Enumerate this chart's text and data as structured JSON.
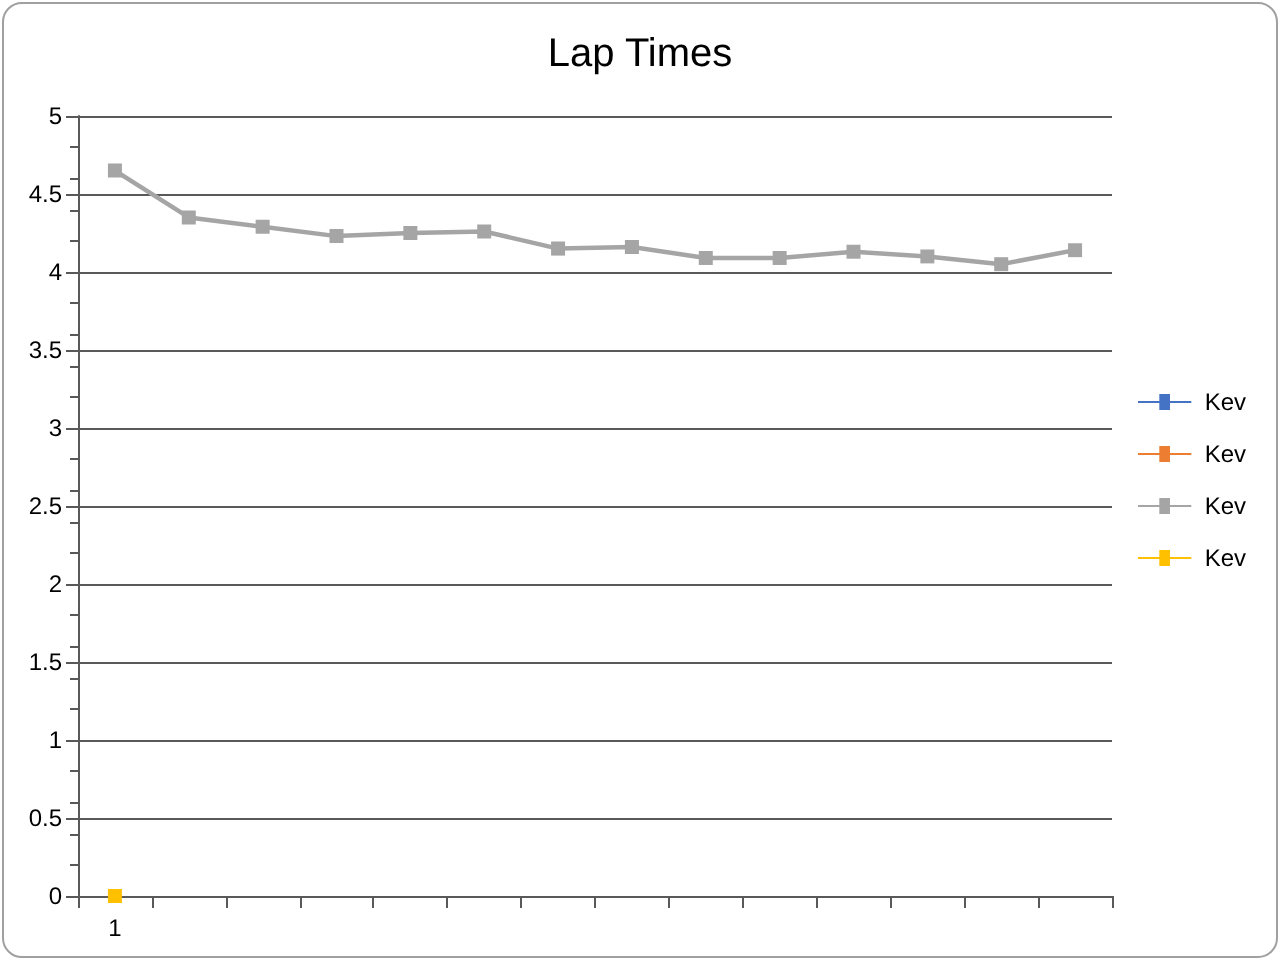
{
  "chart_data": {
    "type": "line",
    "title": "Lap Times",
    "categories": [
      "1",
      null,
      null,
      null,
      null,
      null,
      null,
      null,
      null,
      null,
      null,
      null,
      null,
      null
    ],
    "series": [
      {
        "name": "Kev",
        "color": "#4472c4",
        "values": [
          null,
          null,
          null,
          null,
          null,
          null,
          null,
          null,
          null,
          null,
          null,
          null,
          null,
          null
        ]
      },
      {
        "name": "Kev",
        "color": "#ed7d31",
        "values": [
          null,
          null,
          null,
          null,
          null,
          null,
          null,
          null,
          null,
          null,
          null,
          null,
          null,
          null
        ]
      },
      {
        "name": "Kev",
        "color": "#a5a5a5",
        "values": [
          4.65,
          4.35,
          4.29,
          4.23,
          4.25,
          4.26,
          4.15,
          4.16,
          4.09,
          4.09,
          4.13,
          4.1,
          4.05,
          4.14
        ]
      },
      {
        "name": "Kev",
        "color": "#ffc000",
        "values": [
          0,
          null,
          null,
          null,
          null,
          null,
          null,
          null,
          null,
          null,
          null,
          null,
          null,
          null
        ]
      }
    ],
    "ylim": [
      0,
      5
    ],
    "yticks": [
      0,
      0.5,
      1,
      1.5,
      2,
      2.5,
      3,
      3.5,
      4,
      4.5,
      5
    ],
    "grid": "y",
    "legend": "right",
    "marker": "square",
    "line_style": "solid"
  }
}
